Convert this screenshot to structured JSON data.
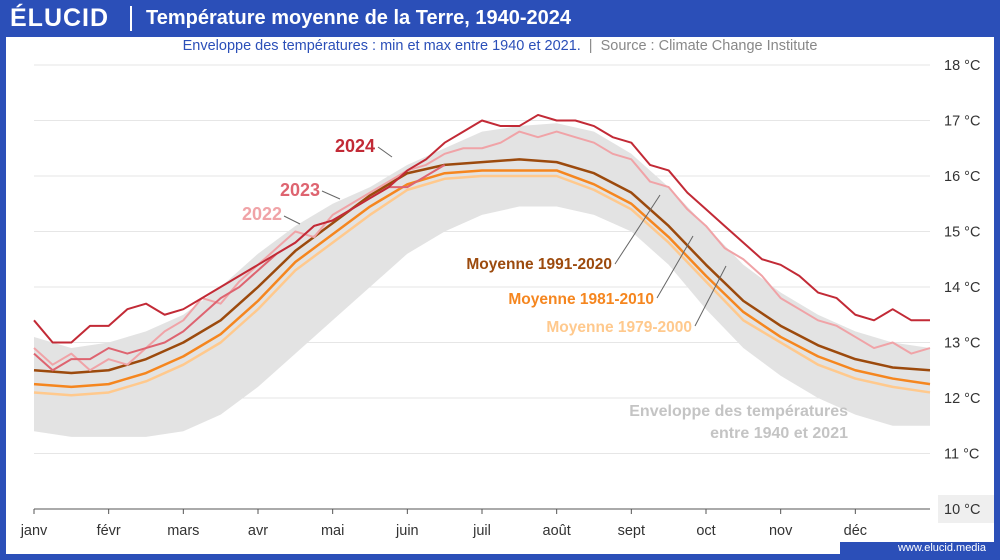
{
  "header": {
    "brand": "ÉLUCID",
    "title": "Température moyenne de la Terre, 1940-2024"
  },
  "subtitle": {
    "text": "Enveloppe des températures : min et max entre 1940 et 2021.",
    "separator": "|",
    "source": "Source : Climate Change Institute"
  },
  "footer": {
    "url": "www.elucid.media"
  },
  "colors": {
    "brand": "#2b4fb8",
    "envelope": "#e3e3e3",
    "y2024": "#c22a36",
    "y2023": "#de6470",
    "y2022": "#f0a3a7",
    "avg_1991_2020": "#9c4a0d",
    "avg_1981_2010": "#f5861f",
    "avg_1979_2000": "#ffc98d"
  },
  "chart_data": {
    "type": "line",
    "title": "Température moyenne de la Terre, 1940-2024",
    "xlabel": "",
    "ylabel": "",
    "x_ticks": [
      "janv",
      "févr",
      "mars",
      "avr",
      "mai",
      "juin",
      "juil",
      "août",
      "sept",
      "oct",
      "nov",
      "déc"
    ],
    "y_ticks": [
      "10 °C",
      "11 °C",
      "12 °C",
      "13 °C",
      "14 °C",
      "15 °C",
      "16 °C",
      "17 °C",
      "18 °C"
    ],
    "ylim": [
      10,
      18
    ],
    "xlim": [
      1,
      13
    ],
    "grid": true,
    "x_unit": "month",
    "envelope": {
      "label": "Enveloppe des températures\nentre 1940 et 2021",
      "x": [
        1,
        1.5,
        2,
        2.5,
        3,
        3.5,
        4,
        4.5,
        5,
        5.5,
        6,
        6.5,
        7,
        7.5,
        8,
        8.5,
        9,
        9.5,
        10,
        10.5,
        11,
        11.5,
        12,
        12.5,
        13
      ],
      "min": [
        11.4,
        11.3,
        11.3,
        11.3,
        11.4,
        11.7,
        12.2,
        12.8,
        13.4,
        14.0,
        14.6,
        15.0,
        15.3,
        15.45,
        15.45,
        15.3,
        15.0,
        14.4,
        13.6,
        12.9,
        12.4,
        12.0,
        11.7,
        11.5,
        11.5
      ],
      "max": [
        13.1,
        12.9,
        13.0,
        13.2,
        13.5,
        14.0,
        14.6,
        15.1,
        15.5,
        15.8,
        16.2,
        16.5,
        16.8,
        16.9,
        16.95,
        16.8,
        16.4,
        15.8,
        15.1,
        14.4,
        13.9,
        13.5,
        13.2,
        13.0,
        12.9
      ]
    },
    "series": [
      {
        "name": "Moyenne 1979-2000",
        "color_key": "avg_1979_2000",
        "stroke": 2.5,
        "x": [
          1,
          1.5,
          2,
          2.5,
          3,
          3.5,
          4,
          4.5,
          5,
          5.5,
          6,
          6.5,
          7,
          7.5,
          8,
          8.5,
          9,
          9.5,
          10,
          10.5,
          11,
          11.5,
          12,
          12.5,
          13
        ],
        "y": [
          12.1,
          12.05,
          12.1,
          12.3,
          12.6,
          13.0,
          13.6,
          14.3,
          14.8,
          15.3,
          15.75,
          15.95,
          16.0,
          16.0,
          16.0,
          15.75,
          15.4,
          14.8,
          14.1,
          13.4,
          13.0,
          12.6,
          12.35,
          12.2,
          12.1
        ]
      },
      {
        "name": "Moyenne 1981-2010",
        "color_key": "avg_1981_2010",
        "stroke": 2.5,
        "x": [
          1,
          1.5,
          2,
          2.5,
          3,
          3.5,
          4,
          4.5,
          5,
          5.5,
          6,
          6.5,
          7,
          7.5,
          8,
          8.5,
          9,
          9.5,
          10,
          10.5,
          11,
          11.5,
          12,
          12.5,
          13
        ],
        "y": [
          12.25,
          12.2,
          12.25,
          12.45,
          12.75,
          13.15,
          13.75,
          14.45,
          14.95,
          15.45,
          15.85,
          16.05,
          16.1,
          16.1,
          16.1,
          15.85,
          15.5,
          14.9,
          14.2,
          13.55,
          13.1,
          12.75,
          12.5,
          12.35,
          12.25
        ]
      },
      {
        "name": "Moyenne 1991-2020",
        "color_key": "avg_1991_2020",
        "stroke": 2.5,
        "x": [
          1,
          1.5,
          2,
          2.5,
          3,
          3.5,
          4,
          4.5,
          5,
          5.5,
          6,
          6.5,
          7,
          7.5,
          8,
          8.5,
          9,
          9.5,
          10,
          10.5,
          11,
          11.5,
          12,
          12.5,
          13
        ],
        "y": [
          12.5,
          12.45,
          12.5,
          12.7,
          13.0,
          13.4,
          14.0,
          14.65,
          15.15,
          15.65,
          16.05,
          16.2,
          16.25,
          16.3,
          16.25,
          16.05,
          15.7,
          15.1,
          14.4,
          13.75,
          13.3,
          12.95,
          12.7,
          12.55,
          12.5
        ]
      },
      {
        "name": "2022",
        "color_key": "y2022",
        "stroke": 2,
        "x": [
          1,
          1.25,
          1.5,
          1.75,
          2,
          2.25,
          2.5,
          2.75,
          3,
          3.25,
          3.5,
          3.75,
          4,
          4.25,
          4.5,
          4.75,
          5,
          5.25,
          5.5,
          5.75,
          6,
          6.25,
          6.5,
          6.75,
          7,
          7.25,
          7.5,
          7.75,
          8,
          8.25,
          8.5,
          8.75,
          9,
          9.25,
          9.5,
          9.75,
          10,
          10.25,
          10.5,
          10.75,
          11,
          11.25,
          11.5,
          11.75,
          12,
          12.25,
          12.5,
          12.75,
          13
        ],
        "y": [
          12.9,
          12.6,
          12.8,
          12.5,
          12.7,
          12.6,
          12.9,
          13.2,
          13.4,
          13.8,
          13.7,
          14.1,
          14.4,
          14.7,
          15.0,
          14.9,
          15.3,
          15.5,
          15.7,
          15.9,
          16.1,
          16.2,
          16.4,
          16.5,
          16.5,
          16.6,
          16.8,
          16.7,
          16.8,
          16.7,
          16.6,
          16.4,
          16.3,
          15.9,
          15.8,
          15.4,
          15.1,
          14.7,
          14.5,
          14.2,
          13.8,
          13.6,
          13.4,
          13.3,
          13.1,
          12.9,
          13.0,
          12.8,
          12.9
        ]
      },
      {
        "name": "2023",
        "color_key": "y2023",
        "stroke": 2,
        "x": [
          1,
          1.25,
          1.5,
          1.75,
          2,
          2.25,
          2.5,
          2.75,
          3,
          3.25,
          3.5,
          3.75,
          4,
          4.25,
          4.5,
          4.75,
          5,
          5.25,
          5.5,
          5.75,
          6,
          6.25,
          6.5
        ],
        "y": [
          12.8,
          12.5,
          12.7,
          12.7,
          12.9,
          12.8,
          12.9,
          13.0,
          13.2,
          13.5,
          13.8,
          14.0,
          14.3,
          14.6,
          14.8,
          15.1,
          15.2,
          15.4,
          15.6,
          15.8,
          15.8,
          16.0,
          16.2
        ]
      },
      {
        "name": "2024",
        "color_key": "y2024",
        "stroke": 2,
        "x": [
          1,
          1.25,
          1.5,
          1.75,
          2,
          2.25,
          2.5,
          2.75,
          3,
          3.25,
          3.5,
          3.75,
          4,
          4.25,
          4.5,
          4.75,
          5,
          5.25,
          5.5,
          5.75,
          6,
          6.25,
          6.5,
          6.75,
          7,
          7.25,
          7.5,
          7.75,
          8,
          8.25,
          8.5,
          8.75,
          9,
          9.25,
          9.5,
          9.75,
          10,
          10.25,
          10.5,
          10.75,
          11,
          11.25,
          11.5,
          11.75,
          12,
          12.25,
          12.5,
          12.75,
          13
        ],
        "y": [
          13.4,
          13.0,
          13.0,
          13.3,
          13.3,
          13.6,
          13.7,
          13.5,
          13.6,
          13.8,
          14.0,
          14.2,
          14.4,
          14.6,
          14.8,
          15.1,
          15.2,
          15.4,
          15.6,
          15.8,
          16.1,
          16.3,
          16.6,
          16.8,
          17.0,
          16.9,
          16.9,
          17.1,
          17.0,
          17.0,
          16.9,
          16.7,
          16.6,
          16.2,
          16.1,
          15.7,
          15.4,
          15.1,
          14.8,
          14.5,
          14.4,
          14.2,
          13.9,
          13.8,
          13.5,
          13.4,
          13.6,
          13.4,
          13.4
        ]
      }
    ],
    "labels": [
      {
        "text": "2024",
        "series": "2024"
      },
      {
        "text": "2023",
        "series": "2023"
      },
      {
        "text": "2022",
        "series": "2022"
      },
      {
        "text": "Moyenne 1991-2020",
        "series": "Moyenne 1991-2020"
      },
      {
        "text": "Moyenne 1981-2010",
        "series": "Moyenne 1981-2010"
      },
      {
        "text": "Moyenne 1979-2000",
        "series": "Moyenne 1979-2000"
      }
    ]
  }
}
